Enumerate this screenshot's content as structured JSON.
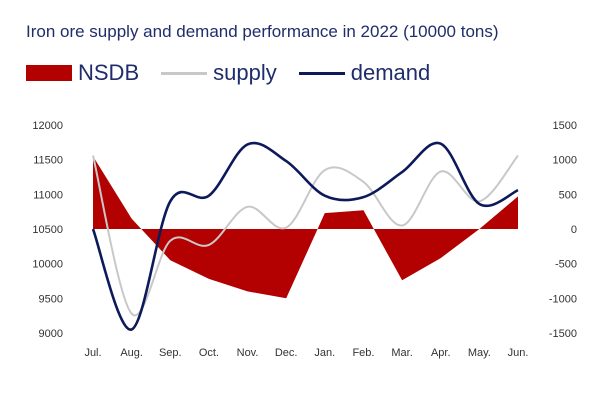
{
  "chart_data": {
    "type": "line",
    "title": "Iron ore supply and demand performance in 2022 (10000 tons)",
    "categories": [
      "Jul.",
      "Aug.",
      "Sep.",
      "Oct.",
      "Nov.",
      "Dec.",
      "Jan.",
      "Feb.",
      "Mar.",
      "Apr.",
      "May.",
      "Jun."
    ],
    "left_axis": {
      "min": 9000,
      "max": 12000,
      "ticks": [
        9000,
        9500,
        10000,
        10500,
        11000,
        11500,
        12000
      ]
    },
    "right_axis": {
      "min": -1500,
      "max": 1500,
      "ticks": [
        -1500,
        -1000,
        -500,
        0,
        500,
        1000,
        1500
      ]
    },
    "series": [
      {
        "name": "NSDB",
        "type": "area",
        "axis": "right",
        "color": "#b30000",
        "values": [
          1050,
          150,
          -450,
          -720,
          -900,
          -1000,
          230,
          270,
          -740,
          -420,
          0,
          470
        ]
      },
      {
        "name": "supply",
        "type": "line",
        "axis": "left",
        "color": "#c8c8c8",
        "values": [
          11560,
          9280,
          10330,
          10270,
          10820,
          10520,
          11350,
          11180,
          10550,
          11330,
          10900,
          11560
        ]
      },
      {
        "name": "demand",
        "type": "line",
        "axis": "left",
        "color": "#0d1a5a",
        "values": [
          10500,
          9050,
          10900,
          10980,
          11720,
          11480,
          10980,
          10960,
          11320,
          11730,
          10860,
          11060
        ]
      }
    ],
    "legend_position": "top-left",
    "grid": false
  }
}
